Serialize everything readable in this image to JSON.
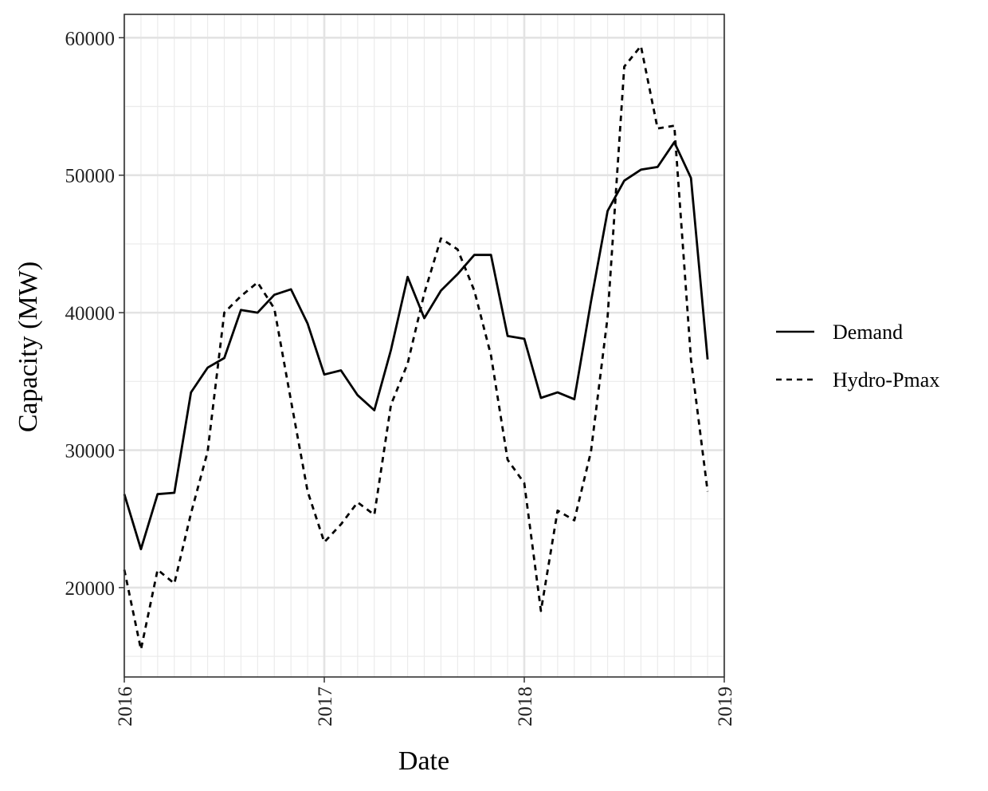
{
  "chart_data": {
    "type": "line",
    "title": "",
    "xlabel": "Date",
    "ylabel": "Capacity (MW)",
    "xlim": [
      "2016-01",
      "2019-01"
    ],
    "ylim": [
      13500,
      61700
    ],
    "x_ticks": [
      "2016",
      "2017",
      "2018",
      "2019"
    ],
    "y_ticks": [
      20000,
      30000,
      40000,
      50000,
      60000
    ],
    "grid": true,
    "legend_position": "right",
    "x": [
      "2016-01",
      "2016-02",
      "2016-03",
      "2016-04",
      "2016-05",
      "2016-06",
      "2016-07",
      "2016-08",
      "2016-09",
      "2016-10",
      "2016-11",
      "2016-12",
      "2017-01",
      "2017-02",
      "2017-03",
      "2017-04",
      "2017-05",
      "2017-06",
      "2017-07",
      "2017-08",
      "2017-09",
      "2017-10",
      "2017-11",
      "2017-12",
      "2018-01",
      "2018-02",
      "2018-03",
      "2018-04",
      "2018-05",
      "2018-06",
      "2018-07",
      "2018-08",
      "2018-09",
      "2018-10",
      "2018-11",
      "2018-12"
    ],
    "series": [
      {
        "name": "Demand",
        "line_style": "solid",
        "color": "#000000",
        "values": [
          26800,
          22800,
          26800,
          26900,
          34200,
          36000,
          36700,
          40200,
          40000,
          41300,
          41700,
          39200,
          35500,
          35800,
          34000,
          32900,
          37300,
          42600,
          39600,
          41600,
          42800,
          44200,
          44200,
          38300,
          38100,
          33800,
          34200,
          33700,
          40800,
          47400,
          49600,
          50400,
          50600,
          52400,
          49800,
          36600
        ]
      },
      {
        "name": "Hydro-Pmax",
        "line_style": "dashed",
        "color": "#000000",
        "values": [
          21300,
          15500,
          21300,
          20300,
          25400,
          29900,
          40000,
          41200,
          42200,
          40300,
          33600,
          27000,
          23300,
          24600,
          26200,
          25300,
          33300,
          36300,
          41400,
          45400,
          44600,
          41600,
          36900,
          29300,
          27600,
          18300,
          25600,
          24900,
          29900,
          39700,
          57900,
          59400,
          53400,
          53600,
          36600,
          27000
        ]
      }
    ]
  }
}
